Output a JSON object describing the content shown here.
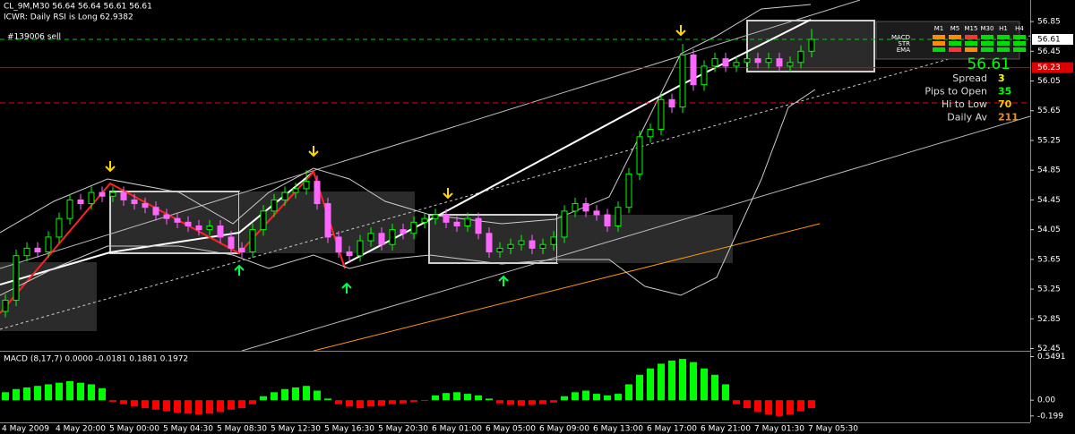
{
  "header": {
    "symbol_line": "CL_9M,M30  56.64 56.64 56.61 56.61",
    "indicator_line": "ICWR: Daily RSI is Long 62.9382",
    "order_label": "#139006 sell"
  },
  "chart_data": {
    "type": "candlestick",
    "open": [
      52.95,
      53.1,
      53.7,
      53.8,
      53.75,
      53.95,
      54.2,
      54.45,
      54.4,
      54.55,
      54.5,
      54.55,
      54.45,
      54.4,
      54.35,
      54.25,
      54.2,
      54.15,
      54.1,
      54.05,
      54.1,
      53.95,
      53.8,
      53.75,
      54.05,
      54.3,
      54.45,
      54.55,
      54.6,
      54.7,
      54.4,
      53.95,
      53.75,
      53.7,
      53.9,
      54.0,
      53.85,
      54.05,
      54.0,
      54.15,
      54.2,
      54.25,
      54.15,
      54.1,
      54.2,
      54.0,
      53.75,
      53.8,
      53.85,
      53.9,
      53.8,
      53.85,
      53.95,
      54.3,
      54.4,
      54.3,
      54.25,
      54.1,
      54.35,
      54.8,
      55.3,
      55.4,
      55.8,
      55.7,
      56.4,
      56.0,
      56.25,
      56.35,
      56.25,
      56.3,
      56.35,
      56.3,
      56.35,
      56.25,
      56.3,
      56.45
    ],
    "high": [
      53.18,
      53.78,
      53.88,
      53.88,
      54.03,
      54.28,
      54.53,
      54.53,
      54.63,
      54.63,
      54.63,
      54.63,
      54.53,
      54.48,
      54.43,
      54.33,
      54.28,
      54.23,
      54.18,
      54.18,
      54.18,
      54.03,
      53.88,
      54.13,
      54.38,
      54.53,
      54.63,
      54.68,
      54.85,
      54.78,
      54.48,
      54.03,
      53.83,
      53.98,
      54.08,
      54.08,
      54.13,
      54.13,
      54.23,
      54.28,
      54.33,
      54.33,
      54.23,
      54.28,
      54.28,
      54.08,
      53.88,
      53.93,
      53.98,
      53.98,
      53.93,
      54.03,
      54.38,
      54.48,
      54.48,
      54.38,
      54.33,
      54.43,
      54.88,
      55.38,
      55.48,
      55.88,
      55.88,
      56.55,
      56.48,
      56.33,
      56.43,
      56.43,
      56.38,
      56.43,
      56.43,
      56.43,
      56.43,
      56.38,
      56.53,
      56.75
    ],
    "low": [
      52.87,
      53.02,
      53.62,
      53.67,
      53.67,
      53.87,
      54.12,
      54.32,
      54.32,
      54.42,
      54.42,
      54.37,
      54.32,
      54.27,
      54.17,
      54.12,
      54.07,
      54.02,
      53.97,
      53.97,
      53.87,
      53.72,
      53.67,
      53.67,
      53.97,
      54.22,
      54.37,
      54.47,
      54.52,
      54.32,
      53.87,
      53.67,
      53.6,
      53.62,
      53.82,
      53.77,
      53.77,
      53.92,
      53.92,
      54.07,
      54.12,
      54.07,
      54.02,
      54.02,
      53.92,
      53.67,
      53.67,
      53.72,
      53.77,
      53.72,
      53.72,
      53.77,
      53.87,
      54.22,
      54.22,
      54.17,
      54.02,
      54.02,
      54.27,
      54.72,
      55.22,
      55.32,
      55.62,
      55.62,
      55.92,
      55.92,
      56.17,
      56.17,
      56.17,
      56.22,
      56.22,
      56.22,
      56.17,
      56.17,
      56.22,
      56.37
    ],
    "close": [
      53.1,
      53.7,
      53.8,
      53.75,
      53.95,
      54.2,
      54.45,
      54.4,
      54.55,
      54.5,
      54.55,
      54.45,
      54.4,
      54.35,
      54.25,
      54.2,
      54.15,
      54.1,
      54.05,
      54.1,
      53.95,
      53.8,
      53.75,
      54.05,
      54.3,
      54.45,
      54.55,
      54.6,
      54.7,
      54.4,
      53.95,
      53.75,
      53.7,
      53.9,
      54.0,
      53.85,
      54.05,
      54.0,
      54.15,
      54.2,
      54.25,
      54.15,
      54.1,
      54.2,
      54.0,
      53.75,
      53.8,
      53.85,
      53.9,
      53.8,
      53.85,
      53.95,
      54.3,
      54.4,
      54.3,
      54.25,
      54.1,
      54.35,
      54.8,
      55.3,
      55.4,
      55.8,
      55.7,
      56.4,
      56.0,
      56.25,
      56.35,
      56.25,
      56.3,
      56.35,
      56.3,
      56.35,
      56.25,
      56.3,
      56.45,
      56.61
    ],
    "up_color": "#00ff00",
    "down_color": "#ff66ff",
    "ylim": [
      52.42,
      57.14
    ],
    "yticks": [
      56.85,
      56.45,
      56.05,
      55.65,
      55.25,
      54.85,
      54.45,
      54.05,
      53.65,
      53.25,
      52.85,
      52.45
    ],
    "current_price": 56.61,
    "level_price": 56.23,
    "x_labels": [
      "4 May 2009",
      "4 May 20:00",
      "5 May 00:00",
      "5 May 04:30",
      "5 May 08:30",
      "5 May 12:30",
      "5 May 16:30",
      "5 May 20:30",
      "6 May 01:00",
      "6 May 05:00",
      "6 May 09:00",
      "6 May 13:00",
      "6 May 17:00",
      "6 May 21:00",
      "7 May 01:30",
      "7 May 05:30"
    ]
  },
  "macd": {
    "type": "bar",
    "title": "MACD (8,17,7) 0.0000 -0.0181 0.1881 0.1972",
    "values": [
      0.1,
      0.14,
      0.16,
      0.18,
      0.2,
      0.22,
      0.24,
      0.22,
      0.2,
      0.15,
      -0.02,
      -0.05,
      -0.08,
      -0.1,
      -0.12,
      -0.14,
      -0.16,
      -0.17,
      -0.18,
      -0.17,
      -0.15,
      -0.12,
      -0.1,
      -0.05,
      0.05,
      0.1,
      0.14,
      0.16,
      0.18,
      0.12,
      0.02,
      -0.05,
      -0.08,
      -0.1,
      -0.08,
      -0.07,
      -0.05,
      -0.04,
      -0.02,
      -0.01,
      0.06,
      0.09,
      0.1,
      0.08,
      0.06,
      0.02,
      -0.04,
      -0.06,
      -0.07,
      -0.06,
      -0.05,
      -0.03,
      0.05,
      0.1,
      0.12,
      0.08,
      0.06,
      0.08,
      0.2,
      0.32,
      0.4,
      0.46,
      0.5,
      0.52,
      0.48,
      0.4,
      0.32,
      0.2,
      -0.05,
      -0.1,
      -0.15,
      -0.18,
      -0.2,
      -0.18,
      -0.14,
      -0.1
    ],
    "up_color": "#00ff00",
    "down_color": "#ff0000",
    "ylim": [
      -0.28,
      0.6
    ],
    "yticks": [
      0.5491,
      {
        "value": 0,
        "label": "0.00"
      },
      -0.199
    ]
  },
  "info_panel": {
    "rows": [
      {
        "label": "Spread",
        "value": 3,
        "color": "#ffff00"
      },
      {
        "label": "Pips to Open",
        "value": 35,
        "color": "#00ff00"
      },
      {
        "label": "Hi to Low",
        "value": 70,
        "color": "#ffcc00"
      },
      {
        "label": "Daily Av",
        "value": 211,
        "color": "#ff8c00"
      }
    ],
    "timeframes": [
      "M1",
      "M5",
      "M15",
      "M30",
      "H1",
      "H4"
    ],
    "indicators": [
      "MACD",
      "STR",
      "EMA"
    ]
  }
}
